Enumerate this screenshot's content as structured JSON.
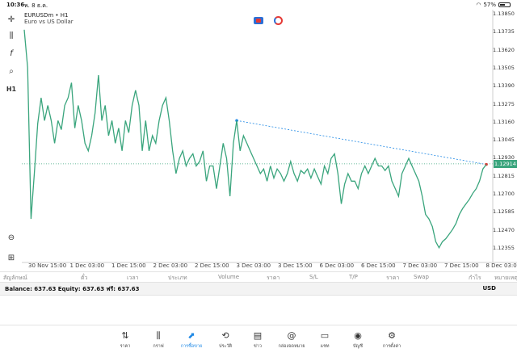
{
  "status_bar": {
    "time": "10:36",
    "date": "พ. 8 ธ.ค.",
    "battery": "57%"
  },
  "chart": {
    "symbol": "EURUSDm • H1",
    "description": "Euro vs US Dollar",
    "current_price": "1.12914",
    "colors": {
      "line": "#3aa57d",
      "trendline": "#1e88e5",
      "price_line": "#3aa57d"
    },
    "y_ticks": [
      "1.13850",
      "1.13735",
      "1.13620",
      "1.13505",
      "1.13390",
      "1.13275",
      "1.13160",
      "1.13045",
      "1.12930",
      "1.12815",
      "1.12700",
      "1.12585",
      "1.12470",
      "1.12355"
    ],
    "x_ticks": [
      "30 Nov 15:00",
      "1 Dec 03:00",
      "1 Dec 15:00",
      "2 Dec 03:00",
      "2 Dec 15:00",
      "3 Dec 03:00",
      "3 Dec 15:00",
      "6 Dec 03:00",
      "6 Dec 15:00",
      "7 Dec 03:00",
      "7 Dec 15:00",
      "8 Dec 03:00"
    ]
  },
  "chart_data": {
    "type": "line",
    "title": "EURUSDm • H1",
    "ylim": [
      1.123,
      1.139
    ],
    "series": [
      {
        "name": "EURUSDm",
        "values": [
          1.138,
          1.1355,
          1.1255,
          1.1285,
          1.1318,
          1.1335,
          1.132,
          1.133,
          1.132,
          1.1305,
          1.132,
          1.1314,
          1.133,
          1.1335,
          1.1345,
          1.1315,
          1.133,
          1.132,
          1.1305,
          1.13,
          1.131,
          1.1325,
          1.135,
          1.132,
          1.133,
          1.131,
          1.132,
          1.1305,
          1.1315,
          1.13,
          1.132,
          1.1312,
          1.133,
          1.134,
          1.133,
          1.13,
          1.132,
          1.13,
          1.131,
          1.1305,
          1.132,
          1.133,
          1.1335,
          1.132,
          1.13,
          1.1285,
          1.1295,
          1.13,
          1.129,
          1.1295,
          1.1298,
          1.129,
          1.1293,
          1.13,
          1.128,
          1.129,
          1.129,
          1.1275,
          1.129,
          1.1305,
          1.1295,
          1.127,
          1.1305,
          1.132,
          1.13,
          1.131,
          1.1305,
          1.13,
          1.1295,
          1.129,
          1.1285,
          1.1288,
          1.128,
          1.129,
          1.1282,
          1.1288,
          1.1285,
          1.128,
          1.1285,
          1.1293,
          1.1285,
          1.128,
          1.1287,
          1.1285,
          1.1288,
          1.1282,
          1.1288,
          1.1283,
          1.1278,
          1.129,
          1.1285,
          1.1295,
          1.1298,
          1.1285,
          1.1265,
          1.1278,
          1.1285,
          1.128,
          1.128,
          1.1275,
          1.1285,
          1.129,
          1.1285,
          1.129,
          1.1295,
          1.129,
          1.129,
          1.1287,
          1.129,
          1.128,
          1.1275,
          1.127,
          1.1285,
          1.129,
          1.1295,
          1.129,
          1.1285,
          1.128,
          1.127,
          1.1258,
          1.1255,
          1.125,
          1.124,
          1.1236,
          1.124,
          1.1242,
          1.1245,
          1.1248,
          1.1252,
          1.1258,
          1.1262,
          1.1265,
          1.1268,
          1.1272,
          1.1275,
          1.128,
          1.1288,
          1.1291
        ]
      }
    ]
  },
  "table": {
    "headers": [
      "สัญลักษณ์",
      "ตั๋ว",
      "เวลา",
      "ประเภท",
      "Volume",
      "ราคา",
      "S/L",
      "T/P",
      "ราคา",
      "Swap",
      "กำไร",
      "หมายเหตุ"
    ]
  },
  "account": {
    "summary": "Balance: 637.63 Equity: 637.63 ฟรี: 637.63",
    "currency": "USD"
  },
  "nav": [
    {
      "label": "ราคา",
      "icon": "quotes-icon"
    },
    {
      "label": "กราฟ",
      "icon": "chart-icon"
    },
    {
      "label": "การซื้อขาย",
      "icon": "trade-icon"
    },
    {
      "label": "ประวัติ",
      "icon": "history-icon"
    },
    {
      "label": "ข่าว",
      "icon": "news-icon"
    },
    {
      "label": "กล่องจดหมาย",
      "icon": "mailbox-icon"
    },
    {
      "label": "แชท",
      "icon": "chat-icon"
    },
    {
      "label": "บัญชี",
      "icon": "account-icon"
    },
    {
      "label": "การตั้งค่า",
      "icon": "settings-icon"
    }
  ]
}
